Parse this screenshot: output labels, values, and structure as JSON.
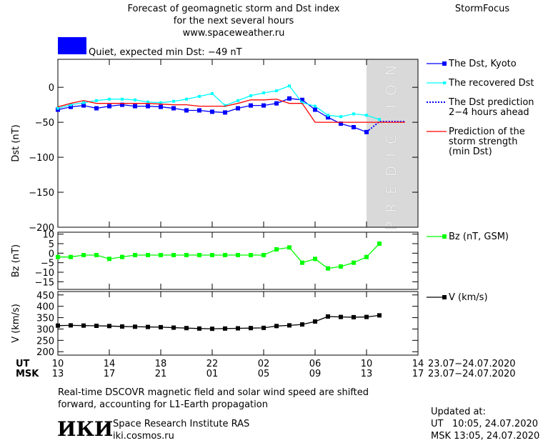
{
  "header": {
    "title_lines": [
      "Forecast of geomagnetic storm and Dst index",
      "for the next several hours",
      "www.spaceweather.ru"
    ],
    "brand": "StormFocus"
  },
  "status": {
    "label": "Quiet, expected min Dst: −49 nT",
    "color": "#0000ff"
  },
  "chart_data": [
    {
      "type": "line",
      "ylabel": "Dst (nT)",
      "xlim": [
        0,
        28
      ],
      "ylim": [
        -200,
        40
      ],
      "yticks": [
        0,
        {
          "value": -50,
          "label": "−50"
        },
        {
          "value": -100,
          "label": "−100"
        },
        {
          "value": -150,
          "label": "−150"
        },
        {
          "value": -200,
          "label": "−200"
        }
      ],
      "prediction_zone": {
        "x": [
          24,
          28
        ],
        "label": "PREDICTION",
        "color": "#d9d9d9"
      },
      "series": [
        {
          "name": [
            "The Dst, Kyoto"
          ],
          "color": "#0000ff",
          "marker": "square",
          "line_style": "solid",
          "x": [
            0,
            1,
            2,
            3,
            4,
            5,
            6,
            7,
            8,
            9,
            10,
            11,
            12,
            13,
            14,
            15,
            16,
            17,
            18,
            19,
            20,
            21,
            22,
            23,
            24
          ],
          "values": [
            -32,
            -28,
            -26,
            -30,
            -27,
            -25,
            -27,
            -27,
            -28,
            -30,
            -33,
            -33,
            -35,
            -36,
            -30,
            -26,
            -26,
            -23,
            -16,
            -18,
            -32,
            -43,
            -52,
            -57,
            -64
          ]
        },
        {
          "name": [
            "The recovered Dst"
          ],
          "color": "#00ffff",
          "marker": "small-square",
          "line_style": "solid",
          "x": [
            0,
            1,
            2,
            3,
            4,
            5,
            6,
            7,
            8,
            9,
            10,
            11,
            12,
            13,
            14,
            15,
            16,
            17,
            18,
            19,
            20,
            21,
            22,
            23,
            24,
            25
          ],
          "values": [
            -30,
            -25,
            -22,
            -19,
            -17,
            -17,
            -18,
            -21,
            -22,
            -20,
            -17,
            -13,
            -9,
            -26,
            -19,
            -12,
            -8,
            -5,
            2,
            -22,
            -27,
            -40,
            -42,
            -38,
            -40,
            -46
          ]
        },
        {
          "name": [
            "The Dst prediction",
            "2−4 hours ahead"
          ],
          "color": "#0000ff",
          "marker": null,
          "line_style": "dotted",
          "x": [
            24,
            25,
            26,
            27
          ],
          "values": [
            -64,
            -49,
            -49,
            -49
          ]
        },
        {
          "name": [
            "Prediction of the",
            "storm strength",
            "(min Dst)"
          ],
          "color": "#ff0000",
          "marker": null,
          "line_style": "solid",
          "x": [
            0,
            1,
            2,
            3,
            4,
            5,
            6,
            7,
            8,
            9,
            10,
            11,
            12,
            13,
            14,
            15,
            16,
            17,
            18,
            19,
            20,
            21,
            22,
            23,
            24,
            25,
            26,
            27
          ],
          "values": [
            -28,
            -23,
            -19,
            -23,
            -23,
            -23,
            -23,
            -23,
            -24,
            -25,
            -25,
            -27,
            -27,
            -27,
            -23,
            -18,
            -18,
            -17,
            -23,
            -23,
            -50,
            -50,
            -50,
            -50,
            -50,
            -50,
            -50,
            -50
          ]
        }
      ]
    },
    {
      "type": "line",
      "ylabel": "Bz (nT)",
      "xlim": [
        0,
        28
      ],
      "ylim": [
        -19,
        11
      ],
      "yticks": [
        10,
        5,
        0,
        {
          "value": -5,
          "label": "−5"
        },
        {
          "value": -10,
          "label": "−10"
        },
        {
          "value": -15,
          "label": "−15"
        }
      ],
      "series": [
        {
          "name": [
            "Bz (nT, GSM)"
          ],
          "color": "#00ff00",
          "marker": "square",
          "line_style": "solid",
          "x": [
            0,
            1,
            2,
            3,
            4,
            5,
            6,
            7,
            8,
            9,
            10,
            11,
            12,
            13,
            14,
            15,
            16,
            17,
            18,
            19,
            20,
            21,
            22,
            23,
            24,
            25
          ],
          "values": [
            -2,
            -2,
            -1,
            -1,
            -3,
            -2,
            -1,
            -1,
            -1,
            -1,
            -1,
            -1,
            -1,
            -1,
            -1,
            -1,
            -1,
            2,
            3,
            -5,
            -3,
            -8,
            -7,
            -5,
            -2,
            5
          ]
        }
      ]
    },
    {
      "type": "line",
      "ylabel": "V (km/s)",
      "xlim": [
        0,
        28
      ],
      "ylim": [
        185,
        465
      ],
      "yticks": [
        450,
        400,
        350,
        300,
        250,
        200
      ],
      "xticks": [
        {
          "value": 0,
          "label": "10"
        },
        {
          "value": 4,
          "label": "14"
        },
        {
          "value": 8,
          "label": "18"
        },
        {
          "value": 12,
          "label": "22"
        },
        {
          "value": 16,
          "label": "02"
        },
        {
          "value": 20,
          "label": "06"
        },
        {
          "value": 24,
          "label": "10"
        },
        {
          "value": 28,
          "label": "14"
        }
      ],
      "xtick_labels_msk": [
        "13",
        "17",
        "21",
        "01",
        "05",
        "09",
        "13",
        "17"
      ],
      "xaxis_rows": {
        "ut": "UT",
        "msk": "MSK",
        "date_range": "23.07−24.07.2020"
      },
      "series": [
        {
          "name": [
            "V (km/s)"
          ],
          "color": "#000000",
          "marker": "square",
          "line_style": "solid",
          "x": [
            0,
            1,
            2,
            3,
            4,
            5,
            6,
            7,
            8,
            9,
            10,
            11,
            12,
            13,
            14,
            15,
            16,
            17,
            18,
            19,
            20,
            21,
            22,
            23,
            24,
            25
          ],
          "values": [
            315,
            316,
            315,
            314,
            313,
            311,
            310,
            309,
            308,
            306,
            304,
            302,
            301,
            302,
            303,
            304,
            305,
            313,
            316,
            320,
            333,
            355,
            353,
            352,
            353,
            360
          ]
        }
      ]
    }
  ],
  "footer": {
    "note_lines": [
      "Real-time DSCOVR magnetic field and solar wind speed are shifted",
      "forward, accounting for L1-Earth propagation"
    ],
    "logo": "ИКИ",
    "institute": "Space Research Institute RAS",
    "site": "iki.cosmos.ru",
    "updated_lines": [
      "Updated at:",
      "UT   10:05, 24.07.2020",
      "MSK 13:05, 24.07.2020"
    ]
  }
}
